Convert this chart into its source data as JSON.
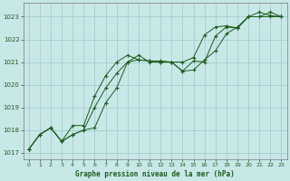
{
  "title": "Graphe pression niveau de la mer (hPa)",
  "background_color": "#c8e8e8",
  "grid_color": "#a0c8c8",
  "line_color": "#1a5c1a",
  "marker_color": "#1a5c1a",
  "xlim": [
    -0.5,
    23.5
  ],
  "ylim": [
    1016.7,
    1023.6
  ],
  "yticks": [
    1017,
    1018,
    1019,
    1020,
    1021,
    1022,
    1023
  ],
  "xticks": [
    0,
    1,
    2,
    3,
    4,
    5,
    6,
    7,
    8,
    9,
    10,
    11,
    12,
    13,
    14,
    15,
    16,
    17,
    18,
    19,
    20,
    21,
    22,
    23
  ],
  "series1_x": [
    0,
    1,
    2,
    3,
    4,
    5,
    6,
    7,
    8,
    9,
    10,
    11,
    12,
    13,
    14,
    15,
    16,
    17,
    18,
    19,
    20,
    21,
    22,
    23
  ],
  "series1_y": [
    1017.15,
    1017.8,
    1018.1,
    1017.5,
    1018.2,
    1018.2,
    1019.5,
    1020.4,
    1021.0,
    1021.3,
    1021.1,
    1021.05,
    1021.05,
    1021.0,
    1020.6,
    1020.65,
    1021.1,
    1021.5,
    1022.25,
    1022.55,
    1023.0,
    1023.2,
    1023.05,
    1023.0
  ],
  "series2_x": [
    0,
    1,
    2,
    3,
    4,
    5,
    6,
    7,
    8,
    9,
    10,
    11,
    12,
    13,
    14,
    15,
    16,
    17,
    18,
    19,
    20,
    21,
    22,
    23
  ],
  "series2_y": [
    1017.15,
    1017.8,
    1018.1,
    1017.5,
    1017.8,
    1018.0,
    1018.1,
    1019.2,
    1019.85,
    1021.0,
    1021.1,
    1021.05,
    1021.0,
    1021.0,
    1021.0,
    1021.2,
    1022.2,
    1022.55,
    1022.6,
    1022.5,
    1023.0,
    1023.0,
    1023.2,
    1023.0
  ],
  "series3_x": [
    0,
    1,
    2,
    3,
    4,
    5,
    6,
    7,
    8,
    9,
    10,
    11,
    12,
    13,
    14,
    15,
    16,
    17,
    18,
    19,
    20,
    21,
    22,
    23
  ],
  "series3_y": [
    1017.15,
    1017.8,
    1018.1,
    1017.5,
    1017.8,
    1018.0,
    1019.0,
    1019.85,
    1020.5,
    1021.0,
    1021.3,
    1021.0,
    1021.0,
    1021.0,
    1020.6,
    1021.05,
    1021.0,
    1022.15,
    1022.55,
    1022.5,
    1023.0,
    1023.0,
    1023.0,
    1023.0
  ]
}
